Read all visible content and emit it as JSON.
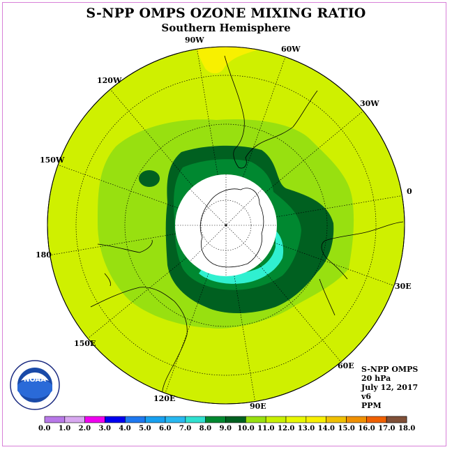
{
  "header": {
    "title": "S-NPP OMPS OZONE MIXING RATIO",
    "subtitle": "Southern Hemisphere"
  },
  "longitude_labels": [
    "90W",
    "60W",
    "30W",
    "0",
    "30E",
    "60E",
    "90E",
    "120E",
    "150E",
    "180",
    "150W",
    "120W"
  ],
  "info": {
    "line1": "S-NPP OMPS",
    "line2": "20 hPa",
    "line3": "July 12, 2017",
    "line4": "v6",
    "line5": "PPM"
  },
  "logo": {
    "text": "NOAA",
    "ring_text": "NATIONAL OCEANIC AND ATMOSPHERIC ADMINISTRATION · U.S. DEPARTMENT OF COMMERCE"
  },
  "colorbar": {
    "labels": [
      "0.0",
      "1.0",
      "2.0",
      "3.0",
      "4.0",
      "5.0",
      "6.0",
      "7.0",
      "8.0",
      "9.0",
      "10.0",
      "11.0",
      "12.0",
      "13.0",
      "14.0",
      "15.0",
      "16.0",
      "17.0",
      "18.0"
    ],
    "colors": [
      "#b878e8",
      "#d8a8f0",
      "#f000f0",
      "#0000f0",
      "#1e78f0",
      "#18a0f0",
      "#28b8f0",
      "#30e0d0",
      "#008830",
      "#006020",
      "#98e010",
      "#c8f000",
      "#e8f800",
      "#f8f000",
      "#f0c000",
      "#f09000",
      "#f06000",
      "#f00000",
      "#805038"
    ]
  },
  "map_colors": {
    "ocean_background": "#cff000",
    "band_11": "#98e010",
    "band_10": "#008830",
    "band_9": "#006020",
    "band_8": "#30f0d0",
    "band_13": "#f8f000",
    "polar_cap": "#ffffff"
  }
}
